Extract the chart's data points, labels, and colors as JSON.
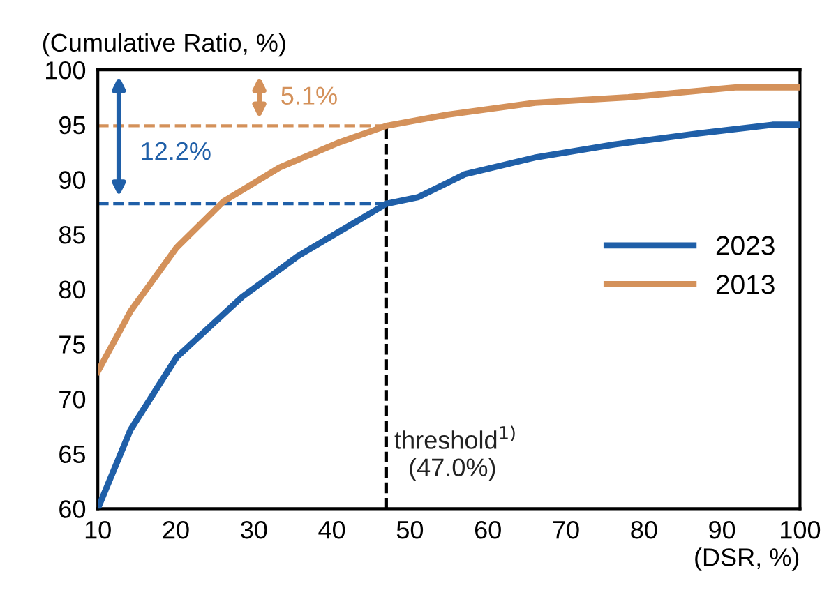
{
  "chart_data": {
    "type": "line",
    "xlabel": "(DSR, %)",
    "ylabel": "(Cumulative Ratio, %)",
    "xlim": [
      10,
      100
    ],
    "xticks": [
      10,
      20,
      30,
      40,
      50,
      60,
      70,
      80,
      90,
      100
    ],
    "ylim": [
      60,
      100
    ],
    "yticks": [
      60,
      65,
      70,
      75,
      80,
      85,
      90,
      95,
      100
    ],
    "grid": false,
    "legend": "right",
    "marker": "none",
    "line_style": "solid",
    "series": [
      {
        "name": "2023",
        "color": "#1f5fa8",
        "x": [
          10,
          14.2,
          20.1,
          28.5,
          35.6,
          47,
          51.1,
          57.1,
          66,
          76.2,
          86.9,
          96.5,
          100
        ],
        "values": [
          60,
          67.2,
          73.8,
          79.3,
          83.0,
          87.8,
          88.4,
          90.5,
          92.0,
          93.2,
          94.2,
          95.0,
          95.0
        ]
      },
      {
        "name": "2013",
        "color": "#d4915a",
        "x": [
          10,
          14.2,
          20.1,
          26.1,
          33.3,
          41,
          47,
          54.7,
          66,
          78,
          91.7,
          100
        ],
        "values": [
          72.5,
          78,
          83.8,
          88.0,
          91.1,
          93.4,
          94.9,
          95.9,
          97.0,
          97.5,
          98.4,
          98.4
        ]
      }
    ],
    "ref_lines": [
      {
        "axis": "x",
        "value": 47.0,
        "color": "#000000",
        "line_style": "dashed"
      },
      {
        "axis": "y",
        "value": 94.9,
        "color": "#d4915a",
        "line_style": "dashed"
      },
      {
        "axis": "y",
        "value": 87.8,
        "color": "#1f5fa8",
        "line_style": "dashed"
      }
    ],
    "annotations": [
      "5.1%",
      "12.2%",
      "threshold$^{1)}$\n  (47.0%)"
    ]
  }
}
